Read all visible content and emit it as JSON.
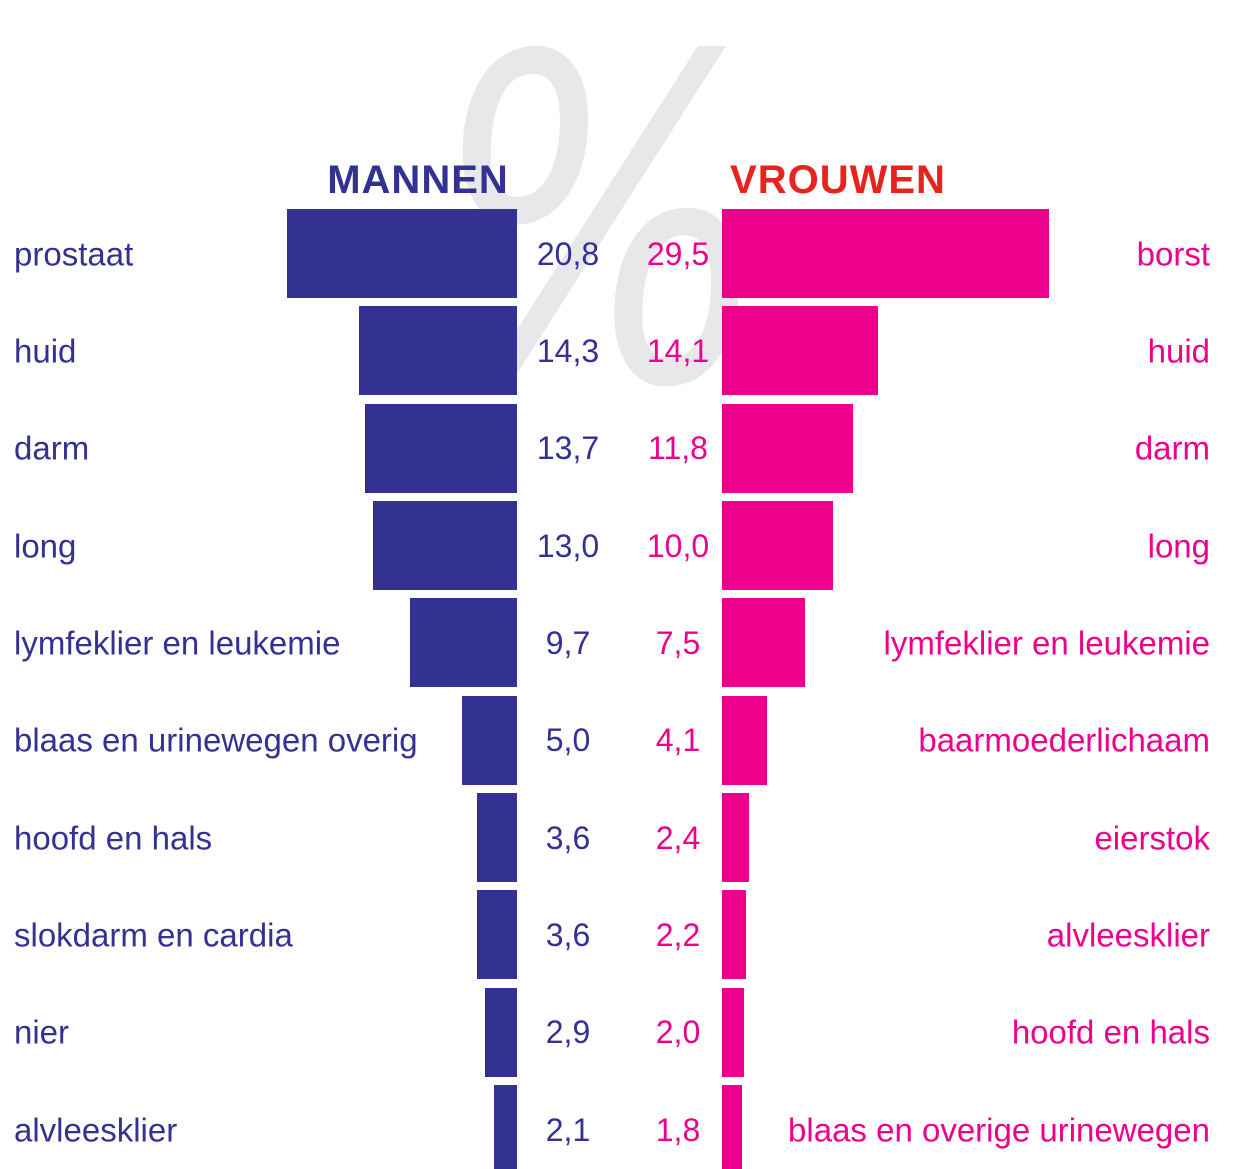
{
  "watermark": {
    "glyph": "%",
    "color": "#E8E8EA"
  },
  "headers": {
    "men_color": "#333191",
    "women_color": "#E8231E"
  },
  "chart_data": {
    "type": "bar",
    "orientation": "horizontal",
    "variant": "diverging butterfly (two mirrored columns)",
    "unit": "%",
    "value_format": "decimal comma",
    "axes": "none - values labeled directly next to bars",
    "grid": false,
    "legend_position": "column headers above bars",
    "series": [
      {
        "name": "MANNEN",
        "color": "#333191",
        "items": [
          {
            "label": "prostaat",
            "value": 20.8,
            "display": "20,8"
          },
          {
            "label": "huid",
            "value": 14.3,
            "display": "14,3"
          },
          {
            "label": "darm",
            "value": 13.7,
            "display": "13,7"
          },
          {
            "label": "long",
            "value": 13.0,
            "display": "13,0"
          },
          {
            "label": "lymfeklier en leukemie",
            "value": 9.7,
            "display": "9,7"
          },
          {
            "label": "blaas en urinewegen overig",
            "value": 5.0,
            "display": "5,0"
          },
          {
            "label": "hoofd en hals",
            "value": 3.6,
            "display": "3,6"
          },
          {
            "label": "slokdarm en cardia",
            "value": 3.6,
            "display": "3,6"
          },
          {
            "label": "nier",
            "value": 2.9,
            "display": "2,9"
          },
          {
            "label": "alvleesklier",
            "value": 2.1,
            "display": "2,1"
          }
        ]
      },
      {
        "name": "VROUWEN",
        "color": "#EC008C",
        "items": [
          {
            "label": "borst",
            "value": 29.5,
            "display": "29,5"
          },
          {
            "label": "huid",
            "value": 14.1,
            "display": "14,1"
          },
          {
            "label": "darm",
            "value": 11.8,
            "display": "11,8"
          },
          {
            "label": "long",
            "value": 10.0,
            "display": "10,0"
          },
          {
            "label": "lymfeklier en leukemie",
            "value": 7.5,
            "display": "7,5"
          },
          {
            "label": "baarmoederlichaam",
            "value": 4.1,
            "display": "4,1"
          },
          {
            "label": "eierstok",
            "value": 2.4,
            "display": "2,4"
          },
          {
            "label": "alvleesklier",
            "value": 2.2,
            "display": "2,2"
          },
          {
            "label": "hoofd en hals",
            "value": 2.0,
            "display": "2,0"
          },
          {
            "label": "blaas en overige urinewegen",
            "value": 1.8,
            "display": "1,8"
          }
        ]
      }
    ]
  }
}
